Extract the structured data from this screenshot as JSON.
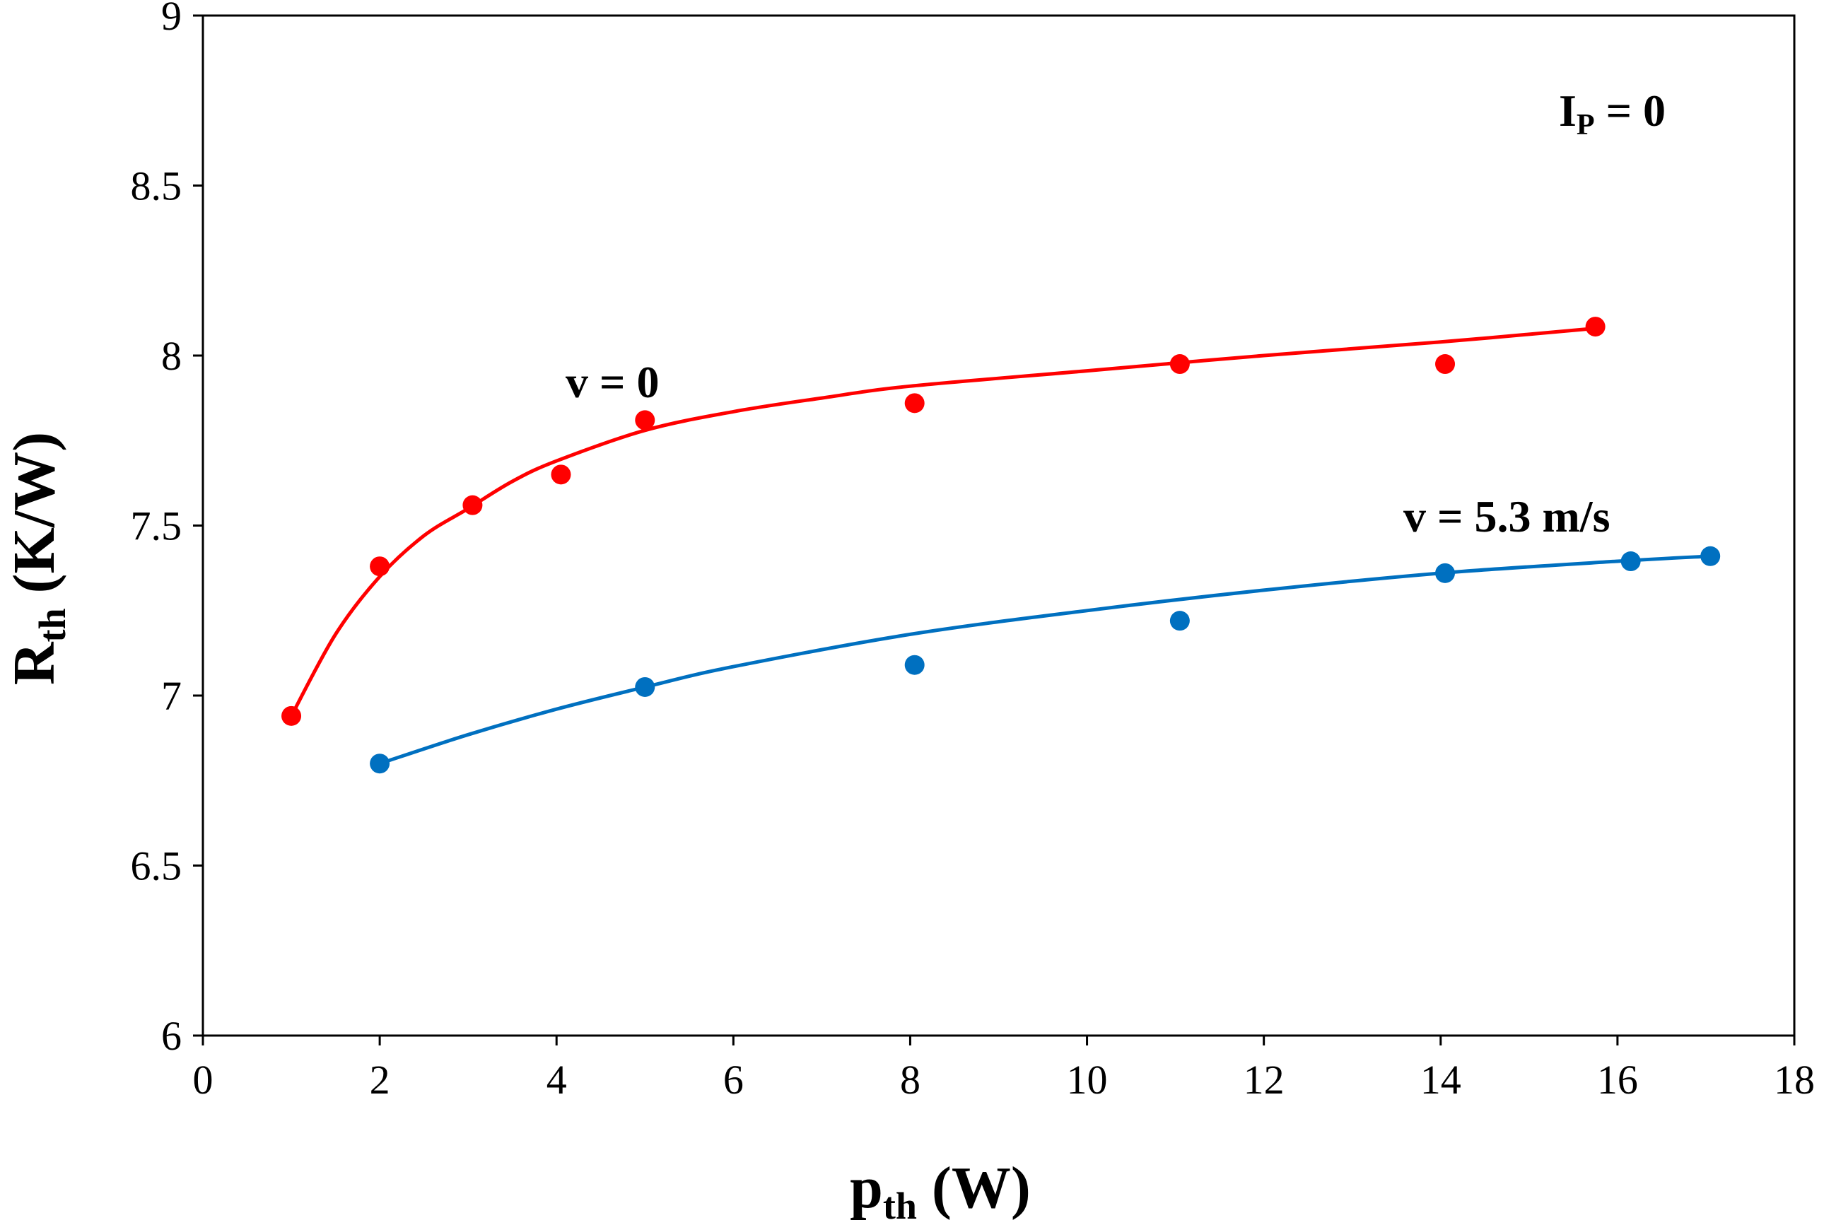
{
  "chart_data": {
    "type": "scatter",
    "title": "",
    "xlabel": {
      "main": "p",
      "sub": "th",
      "rest": " (W)"
    },
    "ylabel": {
      "main": "R",
      "sub": "th",
      "rest": " (K/W)"
    },
    "xlim": [
      0,
      18
    ],
    "ylim": [
      6,
      9
    ],
    "xticks": [
      "0",
      "2",
      "4",
      "6",
      "8",
      "10",
      "12",
      "14",
      "16",
      "18"
    ],
    "xtick_values": [
      0,
      2,
      4,
      6,
      8,
      10,
      12,
      14,
      16,
      18
    ],
    "yticks": [
      "6",
      "6.5",
      "7",
      "7.5",
      "8",
      "8.5",
      "9"
    ],
    "ytick_values": [
      6,
      6.5,
      7,
      7.5,
      8,
      8.5,
      9
    ],
    "grid": false,
    "annotations": {
      "condition": {
        "main": "I",
        "sub": "P",
        "rest": " = 0"
      }
    },
    "series": [
      {
        "name": "v = 0",
        "color": "#ff0000",
        "points": [
          {
            "x": 1.0,
            "y": 6.94
          },
          {
            "x": 2.0,
            "y": 7.38
          },
          {
            "x": 3.05,
            "y": 7.56
          },
          {
            "x": 4.05,
            "y": 7.65
          },
          {
            "x": 5.0,
            "y": 7.81
          },
          {
            "x": 8.05,
            "y": 7.86
          },
          {
            "x": 11.05,
            "y": 7.975
          },
          {
            "x": 14.05,
            "y": 7.975
          },
          {
            "x": 15.75,
            "y": 8.085
          }
        ],
        "fit": [
          {
            "x": 1.0,
            "y": 6.94
          },
          {
            "x": 1.5,
            "y": 7.18
          },
          {
            "x": 2.0,
            "y": 7.35
          },
          {
            "x": 2.5,
            "y": 7.47
          },
          {
            "x": 3.0,
            "y": 7.55
          },
          {
            "x": 3.5,
            "y": 7.63
          },
          {
            "x": 4.0,
            "y": 7.69
          },
          {
            "x": 5.0,
            "y": 7.78
          },
          {
            "x": 6.0,
            "y": 7.835
          },
          {
            "x": 7.0,
            "y": 7.875
          },
          {
            "x": 8.0,
            "y": 7.91
          },
          {
            "x": 10.0,
            "y": 7.955
          },
          {
            "x": 12.0,
            "y": 8.0
          },
          {
            "x": 14.0,
            "y": 8.04
          },
          {
            "x": 15.75,
            "y": 8.08
          }
        ]
      },
      {
        "name": "v = 5.3 m/s",
        "color": "#0070c0",
        "points": [
          {
            "x": 2.0,
            "y": 6.8
          },
          {
            "x": 5.0,
            "y": 7.025
          },
          {
            "x": 8.05,
            "y": 7.09
          },
          {
            "x": 11.05,
            "y": 7.22
          },
          {
            "x": 14.05,
            "y": 7.36
          },
          {
            "x": 16.15,
            "y": 7.395
          },
          {
            "x": 17.05,
            "y": 7.41
          }
        ],
        "fit": [
          {
            "x": 2.0,
            "y": 6.8
          },
          {
            "x": 3.0,
            "y": 6.885
          },
          {
            "x": 4.0,
            "y": 6.96
          },
          {
            "x": 5.0,
            "y": 7.025
          },
          {
            "x": 6.0,
            "y": 7.085
          },
          {
            "x": 8.0,
            "y": 7.18
          },
          {
            "x": 10.0,
            "y": 7.25
          },
          {
            "x": 12.0,
            "y": 7.31
          },
          {
            "x": 14.0,
            "y": 7.36
          },
          {
            "x": 16.0,
            "y": 7.395
          },
          {
            "x": 17.05,
            "y": 7.41
          }
        ]
      }
    ]
  }
}
